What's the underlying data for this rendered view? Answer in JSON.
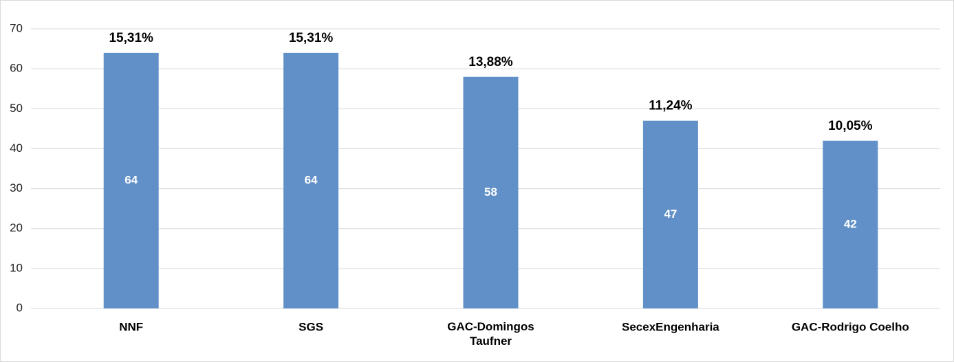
{
  "chart_data": {
    "type": "bar",
    "categories": [
      "NNF",
      "SGS",
      "GAC-Domingos Taufner",
      "SecexEngenharia",
      "GAC-Rodrigo Coelho"
    ],
    "values": [
      64,
      64,
      58,
      47,
      42
    ],
    "shares": [
      15.31,
      15.31,
      13.88,
      11.24,
      10.05
    ],
    "share_labels": [
      "15,31%",
      "15,31%",
      "13,88%",
      "11,24%",
      "10,05%"
    ],
    "color": "#6190c8",
    "ylim": [
      0,
      70
    ],
    "yticks": [
      0,
      10,
      20,
      30,
      40,
      50,
      60,
      70
    ],
    "grid": true
  }
}
